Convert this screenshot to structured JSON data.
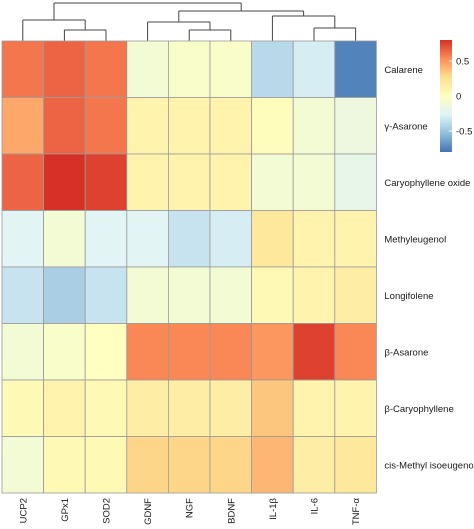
{
  "chart_data": {
    "type": "heatmap",
    "title": "",
    "xlabel": "",
    "ylabel": "",
    "columns": [
      "UCP2",
      "GPx1",
      "SOD2",
      "GDNF",
      "NGF",
      "BDNF",
      "IL-1β",
      "IL-6",
      "TNF-α"
    ],
    "rows": [
      "Calarene",
      "γ-Asarone",
      "Caryophyllene oxide",
      "Methyleugenol",
      "Longifolene",
      "β-Asarone",
      "β-Caryophyllene",
      "cis-Methyl isoeugenol"
    ],
    "values": [
      [
        0.6,
        0.65,
        0.6,
        -0.1,
        -0.05,
        -0.05,
        -0.4,
        -0.3,
        -0.75
      ],
      [
        0.45,
        0.65,
        0.6,
        0.1,
        0.1,
        0.1,
        0.02,
        -0.1,
        -0.15
      ],
      [
        0.65,
        0.8,
        0.75,
        0.1,
        0.1,
        0.1,
        -0.1,
        -0.1,
        -0.2
      ],
      [
        -0.25,
        -0.1,
        -0.25,
        -0.25,
        -0.35,
        -0.3,
        0.2,
        0.1,
        0.1
      ],
      [
        -0.35,
        -0.45,
        -0.35,
        -0.1,
        -0.1,
        -0.1,
        0.05,
        0.1,
        0.15
      ],
      [
        -0.1,
        -0.05,
        0.0,
        0.55,
        0.55,
        0.55,
        0.5,
        0.75,
        0.55
      ],
      [
        0.05,
        0.1,
        0.05,
        0.15,
        0.15,
        0.15,
        0.35,
        0.1,
        0.1
      ],
      [
        -0.1,
        0.05,
        0.05,
        0.3,
        0.3,
        0.3,
        0.4,
        0.15,
        0.2
      ]
    ],
    "color_scale": {
      "min": -0.8,
      "max": 0.8,
      "ticks": [
        0.5,
        0,
        -0.5
      ],
      "tick_labels": [
        "0.5",
        "0",
        "-0.5"
      ],
      "colors": [
        "#4575b4",
        "#91bfdb",
        "#e0f3f8",
        "#ffffbf",
        "#fee090",
        "#fc8d59",
        "#d73027"
      ]
    },
    "legend_position": "top-right",
    "grid": true,
    "grid_color": "#9a9a9a",
    "row_dendrogram": false,
    "column_dendrogram": true,
    "column_dendrogram_groups": [
      [
        "UCP2",
        "GPx1",
        "SOD2"
      ],
      [
        "GDNF",
        "NGF",
        "BDNF"
      ],
      [
        "IL-1β",
        "IL-6",
        "TNF-α"
      ]
    ]
  }
}
